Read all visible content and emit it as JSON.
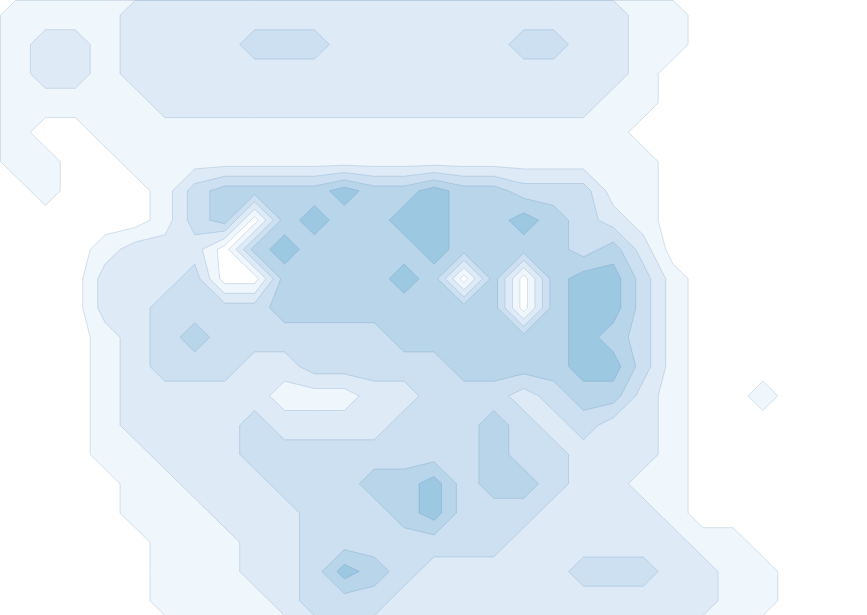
{
  "chart_data": {
    "type": "contour",
    "tick_labels": false,
    "thresholds": [
      0.5,
      1.5,
      2.5,
      3.5,
      4.5
    ],
    "zlim": [
      0,
      12
    ],
    "values": [
      [
        1,
        1,
        1,
        1,
        2,
        2,
        2,
        2,
        2,
        2,
        2,
        2,
        2,
        2,
        2,
        2,
        2,
        2,
        2,
        2,
        2,
        1,
        1,
        0,
        0,
        0,
        0,
        0,
        0
      ],
      [
        1,
        2,
        2,
        1,
        2,
        2,
        2,
        2,
        3,
        3,
        3,
        2,
        2,
        2,
        2,
        2,
        2,
        3,
        3,
        2,
        2,
        1,
        1,
        0,
        0,
        0,
        0,
        0,
        0
      ],
      [
        1,
        2,
        2,
        1,
        2,
        2,
        2,
        2,
        2,
        2,
        2,
        2,
        2,
        2,
        2,
        2,
        2,
        2,
        2,
        2,
        2,
        1,
        0,
        0,
        0,
        0,
        0,
        0,
        0
      ],
      [
        1,
        1,
        1,
        1,
        1,
        2,
        2,
        2,
        2,
        2,
        2,
        2,
        2,
        2,
        2,
        2,
        2,
        2,
        2,
        2,
        1,
        1,
        0,
        0,
        0,
        0,
        0,
        0,
        0
      ],
      [
        1,
        0,
        0,
        1,
        1,
        1,
        1,
        1,
        1,
        1,
        1,
        1,
        1,
        1,
        1,
        1,
        1,
        1,
        1,
        1,
        1,
        0,
        0,
        0,
        0,
        0,
        0,
        0,
        0
      ],
      [
        1,
        1,
        0,
        0,
        1,
        1,
        1,
        1,
        1,
        1,
        1,
        1,
        1,
        1,
        1,
        1,
        1,
        1,
        1,
        1,
        1,
        1,
        0,
        0,
        0,
        0,
        0,
        0,
        0
      ],
      [
        0,
        1,
        0,
        0,
        0,
        1,
        3,
        4,
        4,
        4,
        4,
        5,
        4,
        4,
        5,
        4,
        4,
        3,
        3,
        3,
        1,
        1,
        0,
        0,
        0,
        0,
        0,
        0,
        0
      ],
      [
        0,
        0,
        0,
        0,
        0,
        1,
        3,
        4,
        0,
        4,
        5,
        4,
        4,
        5,
        5,
        4,
        4,
        5,
        4,
        3,
        2,
        1,
        0,
        0,
        0,
        0,
        0,
        0,
        0
      ],
      [
        0,
        0,
        0,
        1,
        2,
        2,
        2,
        0,
        4,
        5,
        4,
        4,
        4,
        4,
        5,
        4,
        4,
        4,
        4,
        3,
        4,
        2,
        0,
        0,
        0,
        0,
        0,
        0,
        0
      ],
      [
        0,
        0,
        0,
        2,
        2,
        2,
        3,
        0,
        0,
        4,
        4,
        4,
        4,
        5,
        4,
        0,
        4,
        0,
        4,
        5,
        5,
        3,
        1,
        0,
        0,
        0,
        0,
        0,
        0
      ],
      [
        0,
        0,
        0,
        2,
        2,
        3,
        3,
        3,
        3,
        4,
        4,
        4,
        4,
        4,
        4,
        4,
        4,
        0,
        4,
        5,
        5,
        3,
        1,
        0,
        0,
        0,
        0,
        0,
        0
      ],
      [
        0,
        0,
        0,
        1,
        2,
        3,
        4,
        3,
        3,
        3,
        3,
        3,
        3,
        4,
        4,
        4,
        4,
        4,
        4,
        5,
        4,
        3,
        1,
        0,
        0,
        0,
        0,
        0,
        0
      ],
      [
        0,
        0,
        0,
        1,
        2,
        3,
        3,
        3,
        2,
        2,
        3,
        3,
        3,
        3,
        3,
        4,
        4,
        4,
        4,
        5,
        5,
        3,
        1,
        0,
        0,
        0,
        0,
        0,
        0
      ],
      [
        0,
        0,
        0,
        1,
        2,
        2,
        2,
        2,
        2,
        1,
        1,
        1,
        2,
        2,
        3,
        3,
        3,
        2,
        3,
        4,
        4,
        2,
        1,
        0,
        0,
        1,
        0,
        0,
        0
      ],
      [
        0,
        0,
        0,
        1,
        2,
        2,
        2,
        2,
        3,
        2,
        2,
        2,
        2,
        3,
        3,
        3,
        4,
        3,
        2,
        3,
        2,
        2,
        1,
        0,
        0,
        0,
        0,
        0,
        0
      ],
      [
        0,
        0,
        0,
        1,
        1,
        2,
        2,
        2,
        3,
        3,
        3,
        3,
        3,
        3,
        3,
        3,
        4,
        3,
        3,
        2,
        2,
        2,
        1,
        0,
        0,
        0,
        0,
        0,
        0
      ],
      [
        0,
        0,
        0,
        0,
        1,
        1,
        2,
        2,
        2,
        3,
        3,
        3,
        4,
        4,
        5,
        3,
        4,
        4,
        3,
        2,
        2,
        1,
        1,
        0,
        0,
        0,
        0,
        0,
        0
      ],
      [
        0,
        0,
        0,
        0,
        1,
        1,
        1,
        2,
        2,
        2,
        3,
        3,
        3,
        4,
        5,
        3,
        3,
        3,
        2,
        2,
        2,
        2,
        1,
        0,
        0,
        0,
        0,
        0,
        0
      ],
      [
        0,
        0,
        0,
        0,
        0,
        1,
        1,
        1,
        2,
        2,
        3,
        3,
        3,
        3,
        3,
        3,
        3,
        2,
        2,
        2,
        2,
        2,
        2,
        1,
        1,
        0,
        0,
        0,
        0
      ],
      [
        0,
        0,
        0,
        0,
        0,
        1,
        1,
        1,
        2,
        2,
        3,
        5,
        4,
        3,
        2,
        2,
        2,
        2,
        2,
        3,
        3,
        3,
        2,
        2,
        1,
        1,
        0,
        0,
        0
      ],
      [
        0,
        0,
        0,
        0,
        0,
        1,
        1,
        1,
        1,
        2,
        3,
        3,
        3,
        2,
        2,
        2,
        2,
        2,
        2,
        2,
        2,
        2,
        2,
        2,
        1,
        1,
        0,
        0,
        0
      ]
    ]
  }
}
